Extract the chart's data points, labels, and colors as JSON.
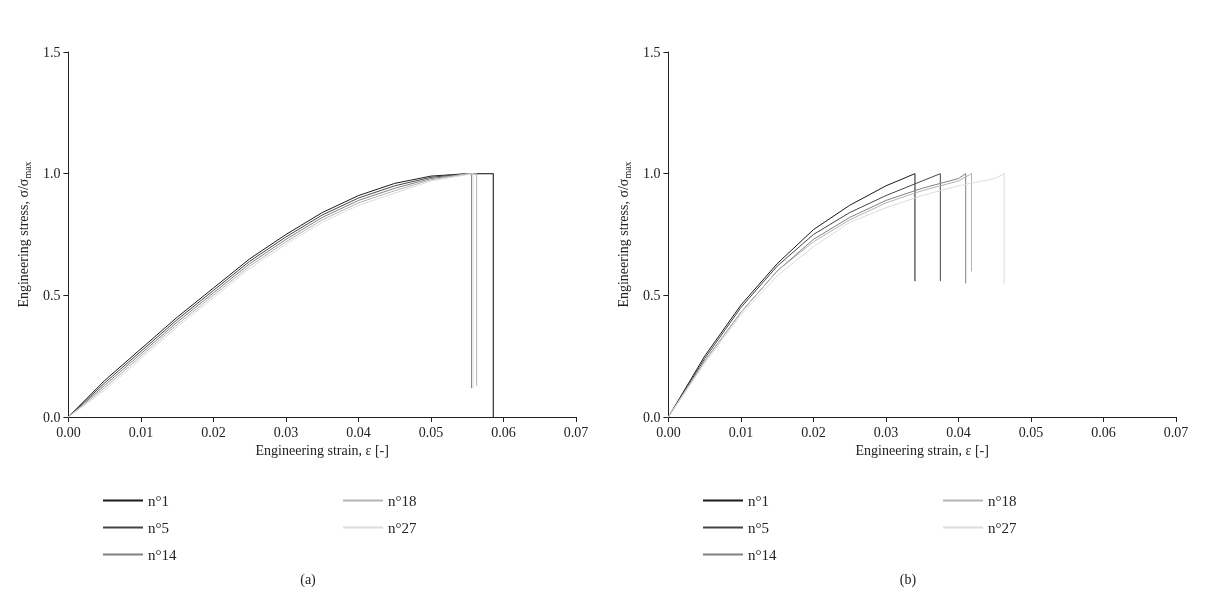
{
  "chart_data": [
    {
      "type": "line",
      "subtitle": "(a)",
      "xlabel": "Engineering strain, ε [-]",
      "ylabel": "Engineering stress, σ/σ$_{max}$",
      "xlim": [
        0,
        0.07
      ],
      "ylim": [
        0,
        1.5
      ],
      "xticks": [
        {
          "value": 0,
          "label": "0.00"
        },
        {
          "value": 0.01,
          "label": "0.01"
        },
        {
          "value": 0.02,
          "label": "0.02"
        },
        {
          "value": 0.03,
          "label": "0.03"
        },
        {
          "value": 0.04,
          "label": "0.04"
        },
        {
          "value": 0.05,
          "label": "0.05"
        },
        {
          "value": 0.06,
          "label": "0.06"
        },
        {
          "value": 0.07,
          "label": "0.07"
        }
      ],
      "yticks": [
        {
          "value": 0,
          "label": "0.0"
        },
        {
          "value": 0.5,
          "label": "0.5"
        },
        {
          "value": 1,
          "label": "1.0"
        },
        {
          "value": 1.5,
          "label": "1.5"
        }
      ],
      "grid": false,
      "legend": "bottom",
      "marker": "none",
      "line_style": "solid",
      "series": [
        {
          "name": "n°1",
          "color": "#1a1a1a",
          "x": [
            0,
            0.005,
            0.01,
            0.015,
            0.02,
            0.025,
            0.03,
            0.035,
            0.04,
            0.045,
            0.05,
            0.055,
            0.0586,
            0.0586
          ],
          "values": [
            0,
            0.15,
            0.28,
            0.41,
            0.53,
            0.65,
            0.75,
            0.84,
            0.91,
            0.96,
            0.99,
            1.0,
            1.0,
            0
          ]
        },
        {
          "name": "n°5",
          "color": "#454545",
          "x": [
            0,
            0.005,
            0.01,
            0.015,
            0.02,
            0.025,
            0.03,
            0.035,
            0.04,
            0.045,
            0.05,
            0.055,
            0.0586,
            0.0586
          ],
          "values": [
            0,
            0.14,
            0.27,
            0.4,
            0.52,
            0.64,
            0.74,
            0.83,
            0.9,
            0.95,
            0.985,
            1.0,
            1.0,
            0
          ]
        },
        {
          "name": "n°14",
          "color": "#808080",
          "x": [
            0,
            0.005,
            0.01,
            0.015,
            0.02,
            0.025,
            0.03,
            0.035,
            0.04,
            0.045,
            0.05,
            0.0556,
            0.0556
          ],
          "values": [
            0,
            0.13,
            0.26,
            0.39,
            0.51,
            0.63,
            0.73,
            0.82,
            0.89,
            0.94,
            0.98,
            1.0,
            0.12
          ]
        },
        {
          "name": "n°18",
          "color": "#b3b3b3",
          "x": [
            0,
            0.005,
            0.01,
            0.015,
            0.02,
            0.025,
            0.03,
            0.035,
            0.04,
            0.045,
            0.05,
            0.055,
            0.0563,
            0.0563
          ],
          "values": [
            0,
            0.12,
            0.25,
            0.38,
            0.5,
            0.62,
            0.72,
            0.81,
            0.88,
            0.93,
            0.975,
            1.0,
            1.0,
            0.13
          ]
        },
        {
          "name": "n°27",
          "color": "#dcdcdc",
          "x": [
            0,
            0.005,
            0.01,
            0.015,
            0.02,
            0.025,
            0.03,
            0.035,
            0.04,
            0.045,
            0.05,
            0.0558,
            0.0558
          ],
          "values": [
            0,
            0.11,
            0.24,
            0.37,
            0.49,
            0.61,
            0.71,
            0.8,
            0.87,
            0.92,
            0.97,
            1.0,
            0.12
          ]
        }
      ]
    },
    {
      "type": "line",
      "subtitle": "(b)",
      "xlabel": "Engineering strain, ε [-]",
      "ylabel": "Engineering stress, σ/σ$_{max}$",
      "xlim": [
        0,
        0.07
      ],
      "ylim": [
        0,
        1.5
      ],
      "xticks": [
        {
          "value": 0,
          "label": "0.00"
        },
        {
          "value": 0.01,
          "label": "0.01"
        },
        {
          "value": 0.02,
          "label": "0.02"
        },
        {
          "value": 0.03,
          "label": "0.03"
        },
        {
          "value": 0.04,
          "label": "0.04"
        },
        {
          "value": 0.05,
          "label": "0.05"
        },
        {
          "value": 0.06,
          "label": "0.06"
        },
        {
          "value": 0.07,
          "label": "0.07"
        }
      ],
      "yticks": [
        {
          "value": 0,
          "label": "0.0"
        },
        {
          "value": 0.5,
          "label": "0.5"
        },
        {
          "value": 1,
          "label": "1.0"
        },
        {
          "value": 1.5,
          "label": "1.5"
        }
      ],
      "grid": false,
      "legend": "bottom",
      "marker": "none",
      "line_style": "solid",
      "series": [
        {
          "name": "n°1",
          "color": "#1a1a1a",
          "x": [
            0,
            0.005,
            0.01,
            0.015,
            0.02,
            0.025,
            0.03,
            0.034,
            0.034
          ],
          "values": [
            0,
            0.25,
            0.46,
            0.63,
            0.77,
            0.87,
            0.95,
            1.0,
            0.56
          ]
        },
        {
          "name": "n°5",
          "color": "#454545",
          "x": [
            0,
            0.005,
            0.01,
            0.015,
            0.02,
            0.025,
            0.03,
            0.035,
            0.0375,
            0.0375
          ],
          "values": [
            0,
            0.24,
            0.45,
            0.62,
            0.75,
            0.84,
            0.91,
            0.97,
            1.0,
            0.56
          ]
        },
        {
          "name": "n°14",
          "color": "#808080",
          "x": [
            0,
            0.005,
            0.01,
            0.015,
            0.02,
            0.025,
            0.03,
            0.035,
            0.04,
            0.041,
            0.041
          ],
          "values": [
            0,
            0.23,
            0.43,
            0.6,
            0.73,
            0.82,
            0.89,
            0.94,
            0.98,
            1.0,
            0.55
          ]
        },
        {
          "name": "n°18",
          "color": "#b3b3b3",
          "x": [
            0,
            0.005,
            0.01,
            0.015,
            0.02,
            0.025,
            0.03,
            0.035,
            0.04,
            0.0418,
            0.0418
          ],
          "values": [
            0,
            0.23,
            0.43,
            0.6,
            0.72,
            0.81,
            0.88,
            0.93,
            0.97,
            1.0,
            0.6
          ]
        },
        {
          "name": "n°27",
          "color": "#dcdcdc",
          "x": [
            0,
            0.005,
            0.01,
            0.015,
            0.02,
            0.025,
            0.03,
            0.035,
            0.04,
            0.045,
            0.0463,
            0.0463
          ],
          "values": [
            0,
            0.22,
            0.42,
            0.58,
            0.7,
            0.8,
            0.86,
            0.91,
            0.95,
            0.98,
            1.0,
            0.55
          ]
        }
      ]
    }
  ]
}
